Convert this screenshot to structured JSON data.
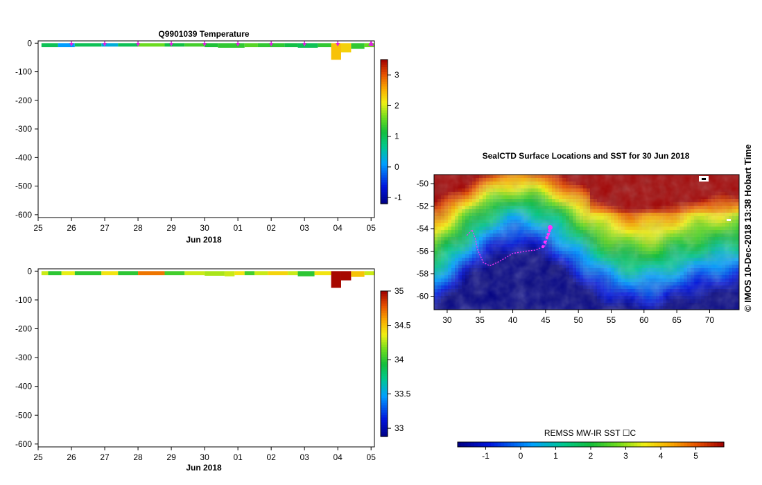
{
  "chart_data": [
    {
      "type": "heatmap",
      "title": "Q9901039  Temperature",
      "xlabel": "Jun 2018",
      "ylabel": "",
      "x_ticks": [
        "25",
        "26",
        "27",
        "28",
        "29",
        "30",
        "01",
        "02",
        "03",
        "04",
        "05"
      ],
      "y_ticks": [
        0,
        -100,
        -200,
        -300,
        -400,
        -500,
        -600
      ],
      "ylim": [
        -610,
        8
      ],
      "xlim": [
        25.0,
        35.1
      ],
      "colorbar": {
        "ticks": [
          3,
          2,
          1,
          0,
          -1
        ],
        "range": [
          -1.2,
          3.5
        ]
      },
      "profile_markers": [
        26,
        27,
        28,
        29,
        30,
        31,
        32,
        33,
        34,
        35
      ],
      "cells": [
        {
          "t0": 25.1,
          "t1": 25.6,
          "d": 14,
          "v": 1.0
        },
        {
          "t0": 25.6,
          "t1": 26.1,
          "d": 14,
          "v": 0.1
        },
        {
          "t0": 26.1,
          "t1": 26.9,
          "d": 12,
          "v": 1.0
        },
        {
          "t0": 26.9,
          "t1": 27.4,
          "d": 12,
          "v": 0.3
        },
        {
          "t0": 27.4,
          "t1": 28.0,
          "d": 12,
          "v": 1.0
        },
        {
          "t0": 28.0,
          "t1": 28.8,
          "d": 12,
          "v": 1.6
        },
        {
          "t0": 28.8,
          "t1": 29.4,
          "d": 12,
          "v": 1.1
        },
        {
          "t0": 29.4,
          "t1": 30.0,
          "d": 12,
          "v": 1.4
        },
        {
          "t0": 30.0,
          "t1": 30.4,
          "d": 14,
          "v": 1.2
        },
        {
          "t0": 30.4,
          "t1": 31.2,
          "d": 16,
          "v": 1.3
        },
        {
          "t0": 31.2,
          "t1": 31.6,
          "d": 14,
          "v": 1.5
        },
        {
          "t0": 31.6,
          "t1": 32.4,
          "d": 14,
          "v": 1.3
        },
        {
          "t0": 32.4,
          "t1": 32.8,
          "d": 14,
          "v": 1.1
        },
        {
          "t0": 32.8,
          "t1": 33.4,
          "d": 16,
          "v": 1.0
        },
        {
          "t0": 33.4,
          "t1": 33.8,
          "d": 14,
          "v": 1.3
        },
        {
          "t0": 33.8,
          "t1": 34.1,
          "d": 58,
          "v": 2.4
        },
        {
          "t0": 34.1,
          "t1": 34.4,
          "d": 32,
          "v": 2.3
        },
        {
          "t0": 34.4,
          "t1": 34.8,
          "d": 20,
          "v": 1.3
        },
        {
          "t0": 34.8,
          "t1": 35.1,
          "d": 14,
          "v": 1.6
        }
      ]
    },
    {
      "type": "heatmap",
      "title": "",
      "xlabel": "Jun 2018",
      "ylabel": "",
      "x_ticks": [
        "25",
        "26",
        "27",
        "28",
        "29",
        "30",
        "01",
        "02",
        "03",
        "04",
        "05"
      ],
      "y_ticks": [
        0,
        -100,
        -200,
        -300,
        -400,
        -500,
        -600
      ],
      "ylim": [
        -610,
        8
      ],
      "xlim": [
        25.0,
        35.1
      ],
      "colorbar": {
        "ticks": [
          35,
          34.5,
          34,
          33.5,
          33
        ],
        "range": [
          32.88,
          35.0
        ]
      },
      "cells": [
        {
          "t0": 25.1,
          "t1": 25.3,
          "d": 14,
          "v": 34.3
        },
        {
          "t0": 25.3,
          "t1": 25.7,
          "d": 14,
          "v": 34.0
        },
        {
          "t0": 25.7,
          "t1": 26.1,
          "d": 14,
          "v": 34.35
        },
        {
          "t0": 26.1,
          "t1": 26.9,
          "d": 14,
          "v": 34.0
        },
        {
          "t0": 26.9,
          "t1": 27.4,
          "d": 14,
          "v": 34.4
        },
        {
          "t0": 27.4,
          "t1": 28.0,
          "d": 14,
          "v": 34.0
        },
        {
          "t0": 28.0,
          "t1": 28.8,
          "d": 14,
          "v": 34.7
        },
        {
          "t0": 28.8,
          "t1": 29.4,
          "d": 14,
          "v": 34.05
        },
        {
          "t0": 29.4,
          "t1": 30.0,
          "d": 14,
          "v": 34.3
        },
        {
          "t0": 30.0,
          "t1": 30.6,
          "d": 16,
          "v": 34.25
        },
        {
          "t0": 30.6,
          "t1": 30.9,
          "d": 18,
          "v": 34.3
        },
        {
          "t0": 30.9,
          "t1": 31.2,
          "d": 14,
          "v": 34.4
        },
        {
          "t0": 31.2,
          "t1": 31.5,
          "d": 14,
          "v": 34.05
        },
        {
          "t0": 31.5,
          "t1": 31.9,
          "d": 14,
          "v": 34.3
        },
        {
          "t0": 31.9,
          "t1": 32.5,
          "d": 14,
          "v": 34.45
        },
        {
          "t0": 32.5,
          "t1": 32.8,
          "d": 14,
          "v": 34.3
        },
        {
          "t0": 32.8,
          "t1": 33.3,
          "d": 18,
          "v": 34.0
        },
        {
          "t0": 33.3,
          "t1": 33.8,
          "d": 14,
          "v": 34.4
        },
        {
          "t0": 33.8,
          "t1": 34.1,
          "d": 58,
          "v": 34.98
        },
        {
          "t0": 34.1,
          "t1": 34.4,
          "d": 32,
          "v": 34.98
        },
        {
          "t0": 34.4,
          "t1": 34.8,
          "d": 20,
          "v": 34.5
        },
        {
          "t0": 34.8,
          "t1": 35.1,
          "d": 14,
          "v": 34.3
        }
      ]
    },
    {
      "type": "heatmap",
      "title": "SealCTD Surface Locations and SST for 30 Jun 2018",
      "xlabel": "",
      "ylabel": "",
      "x_ticks": [
        30,
        35,
        40,
        45,
        50,
        55,
        60,
        65,
        70
      ],
      "y_ticks": [
        -50,
        -52,
        -54,
        -56,
        -58,
        -60
      ],
      "xlim": [
        28.0,
        74.5
      ],
      "ylim": [
        -61.2,
        -49.2
      ],
      "colorbar_label": "REMSS MW-IR SST ☐C",
      "colorbar_ticks": [
        -1,
        0,
        1,
        2,
        3,
        4,
        5
      ],
      "colorbar_range": [
        -1.8,
        5.8
      ],
      "track": [
        [
          33.0,
          -54.6
        ],
        [
          33.8,
          -54.1
        ],
        [
          34.3,
          -54.9
        ],
        [
          34.6,
          -55.8
        ],
        [
          35.5,
          -57.0
        ],
        [
          36.5,
          -57.3
        ],
        [
          38.0,
          -56.9
        ],
        [
          40.0,
          -56.2
        ],
        [
          42.0,
          -56.0
        ],
        [
          43.5,
          -55.9
        ],
        [
          45.0,
          -55.5
        ],
        [
          45.2,
          -55.0
        ],
        [
          45.7,
          -54.3
        ],
        [
          45.7,
          -54.0
        ]
      ],
      "track_dots": [
        [
          44.6,
          -55.6
        ],
        [
          44.9,
          -55.2
        ],
        [
          45.2,
          -54.8
        ],
        [
          45.4,
          -54.5
        ],
        [
          45.6,
          -54.2
        ]
      ],
      "last_position": [
        45.7,
        -53.9
      ]
    }
  ],
  "watermark": "© IMOS 10-Dec-2018 13:38 Hobart Time",
  "colors": {
    "track": "#ff33ff",
    "marker": "#dd22dd"
  }
}
